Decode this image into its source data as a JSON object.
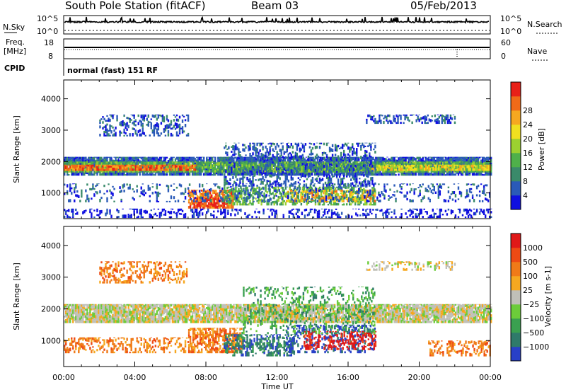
{
  "header": {
    "station": "South Pole Station (fitACF)",
    "beam": "Beam 03",
    "date": "05/Feb/2013"
  },
  "nsky": {
    "label": "N.Sky",
    "ticks": [
      "10^5",
      "10^0"
    ],
    "right_label": "N.Search",
    "right_ticks": [
      "10^5",
      "10^0"
    ]
  },
  "freq": {
    "label_line1": "Freq.",
    "label_line2": "[MHz]",
    "ticks": [
      "18",
      "8"
    ],
    "right_label": "Nave",
    "right_ticks": [
      "60",
      "0"
    ]
  },
  "cpid": {
    "label": "CPID",
    "value": "normal (fast) 151 RF"
  },
  "chart_data": [
    {
      "type": "heatmap",
      "name": "power",
      "ylabel": "Slant Range [km]",
      "ylim": [
        180,
        4600
      ],
      "y_ticks": [
        1000,
        2000,
        3000,
        4000
      ],
      "x_ticks": [
        "00:00",
        "04:00",
        "08:00",
        "12:00",
        "16:00",
        "20:00",
        "00:00"
      ],
      "colorbar_label": "Power [dB]",
      "colorbar_ticks": [
        4,
        8,
        12,
        16,
        20,
        24,
        28
      ],
      "colorbar_colors": [
        "#1010e0",
        "#2a5ab8",
        "#3a8a6a",
        "#4fb04a",
        "#9cd030",
        "#f0e020",
        "#f6a820",
        "#f06a18",
        "#e82018"
      ]
    },
    {
      "type": "heatmap",
      "name": "velocity",
      "ylabel": "Slant Range [km]",
      "ylim": [
        180,
        4600
      ],
      "y_ticks": [
        1000,
        2000,
        3000,
        4000
      ],
      "x_ticks": [
        "00:00",
        "04:00",
        "08:00",
        "12:00",
        "16:00",
        "20:00",
        "00:00"
      ],
      "xlabel": "Time UT",
      "colorbar_label": "Velocity [m s-1]",
      "colorbar_ticks": [
        1000,
        500,
        100,
        25,
        -25,
        -100,
        -500,
        -1000
      ],
      "colorbar_colors": [
        "#2840c8",
        "#2f7a6a",
        "#3aa050",
        "#6ccc3a",
        "#c0c0b8",
        "#f6a820",
        "#f07a18",
        "#ee4a14",
        "#e01818"
      ]
    }
  ],
  "layers": {
    "power": [
      {
        "t0": 0.0,
        "t1": 24.0,
        "r0": 1550,
        "r1": 2150,
        "color_index": 1,
        "density": 0.9
      },
      {
        "t0": 0.0,
        "t1": 24.0,
        "r0": 1650,
        "r1": 2000,
        "color_index": 3,
        "density": 0.85
      },
      {
        "t0": 0.0,
        "t1": 7.5,
        "r0": 1700,
        "r1": 1900,
        "color_index": 7,
        "density": 0.8
      },
      {
        "t0": 17.3,
        "t1": 24.0,
        "r0": 1700,
        "r1": 1900,
        "color_index": 5,
        "density": 0.7
      },
      {
        "t0": 7.0,
        "t1": 9.5,
        "r0": 500,
        "r1": 1100,
        "color_index": 7,
        "density": 0.75
      },
      {
        "t0": 7.3,
        "t1": 9.0,
        "r0": 550,
        "r1": 850,
        "color_index": 8,
        "density": 0.6
      },
      {
        "t0": 9.0,
        "t1": 17.5,
        "r0": 600,
        "r1": 1200,
        "color_index": 3,
        "density": 0.55
      },
      {
        "t0": 12.5,
        "t1": 17.5,
        "r0": 700,
        "r1": 1100,
        "color_index": 6,
        "density": 0.45
      },
      {
        "t0": 9.0,
        "t1": 17.5,
        "r0": 1200,
        "r1": 2600,
        "color_index": 1,
        "density": 0.35
      },
      {
        "t0": 2.0,
        "t1": 7.0,
        "r0": 2800,
        "r1": 3500,
        "color_index": 1,
        "density": 0.4
      },
      {
        "t0": 17.0,
        "t1": 22.0,
        "r0": 3200,
        "r1": 3500,
        "color_index": 1,
        "density": 0.4
      },
      {
        "t0": 0.0,
        "t1": 24.0,
        "r0": 200,
        "r1": 500,
        "color_index": 0,
        "density": 0.3
      },
      {
        "t0": 0.0,
        "t1": 24.0,
        "r0": 700,
        "r1": 1300,
        "color_index": 1,
        "density": 0.2
      }
    ],
    "velocity": [
      {
        "t0": 0.0,
        "t1": 24.0,
        "r0": 1550,
        "r1": 2150,
        "color_index": 4,
        "density": 0.9
      },
      {
        "t0": 0.0,
        "t1": 7.0,
        "r0": 600,
        "r1": 1100,
        "color_index": 6,
        "density": 0.35
      },
      {
        "t0": 7.0,
        "t1": 10.0,
        "r0": 600,
        "r1": 1400,
        "color_index": 6,
        "density": 0.7
      },
      {
        "t0": 9.0,
        "t1": 13.0,
        "r0": 500,
        "r1": 1200,
        "color_index": 1,
        "density": 0.5
      },
      {
        "t0": 12.5,
        "t1": 17.5,
        "r0": 600,
        "r1": 1500,
        "color_index": 0,
        "density": 0.35
      },
      {
        "t0": 13.5,
        "t1": 17.5,
        "r0": 700,
        "r1": 1300,
        "color_index": 8,
        "density": 0.35
      },
      {
        "t0": 10.0,
        "t1": 17.5,
        "r0": 1200,
        "r1": 2700,
        "color_index": 2,
        "density": 0.25
      },
      {
        "t0": 2.0,
        "t1": 7.0,
        "r0": 2800,
        "r1": 3500,
        "color_index": 6,
        "density": 0.35
      },
      {
        "t0": 17.0,
        "t1": 22.0,
        "r0": 3200,
        "r1": 3500,
        "color_index": 4,
        "density": 0.3
      },
      {
        "t0": 20.5,
        "t1": 24.0,
        "r0": 500,
        "r1": 1000,
        "color_index": 6,
        "density": 0.4
      }
    ]
  },
  "colors": {
    "background": "#ffffff",
    "frame": "#000000"
  }
}
